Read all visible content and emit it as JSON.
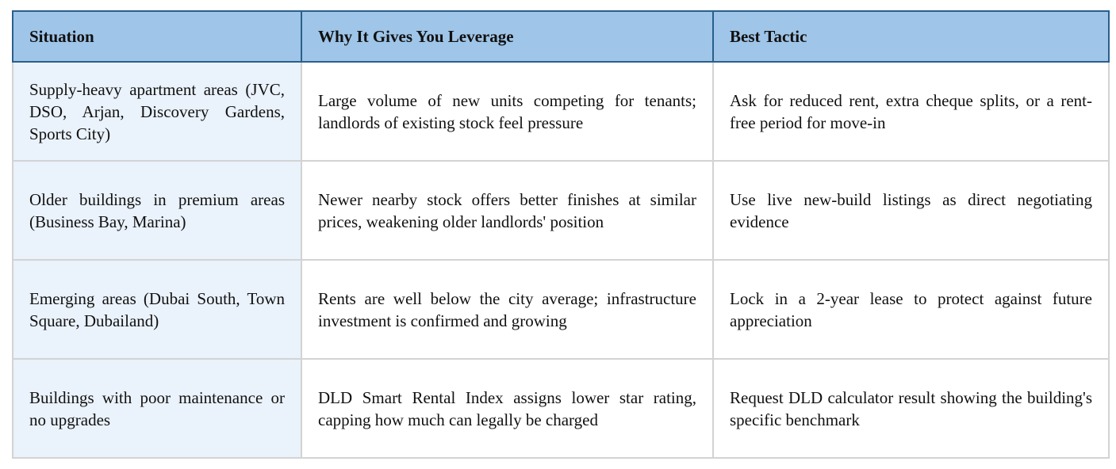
{
  "table": {
    "headers": [
      "Situation",
      "Why It Gives You Leverage",
      "Best Tactic"
    ],
    "rows": [
      {
        "situation": "Supply-heavy apartment areas (JVC, DSO, Arjan, Discovery Gardens, Sports City)",
        "leverage": "Large volume of new units competing for tenants; landlords of existing stock feel pressure",
        "tactic": "Ask for reduced rent, extra cheque splits, or a rent-free period for move-in"
      },
      {
        "situation": "Older buildings in premium areas (Business Bay, Marina)",
        "leverage": "Newer nearby stock offers better finishes at similar prices, weakening older landlords' position",
        "tactic": "Use live new-build listings as direct negotiating evidence"
      },
      {
        "situation": "Emerging areas (Dubai South, Town Square, Dubailand)",
        "leverage": "Rents are well below the city average; infrastructure investment is confirmed and growing",
        "tactic": "Lock in a 2-year lease to protect against future appreciation"
      },
      {
        "situation": "Buildings with poor maintenance or no upgrades",
        "leverage": "DLD Smart Rental Index assigns lower star rating, capping how much can legally be charged",
        "tactic": "Request DLD calculator result showing the building's specific benchmark"
      }
    ]
  },
  "colors": {
    "header_bg": "#9fc5e8",
    "header_border": "#2a5f8c",
    "first_col_bg": "#eaf2fb",
    "cell_border": "#d3d3d3"
  }
}
